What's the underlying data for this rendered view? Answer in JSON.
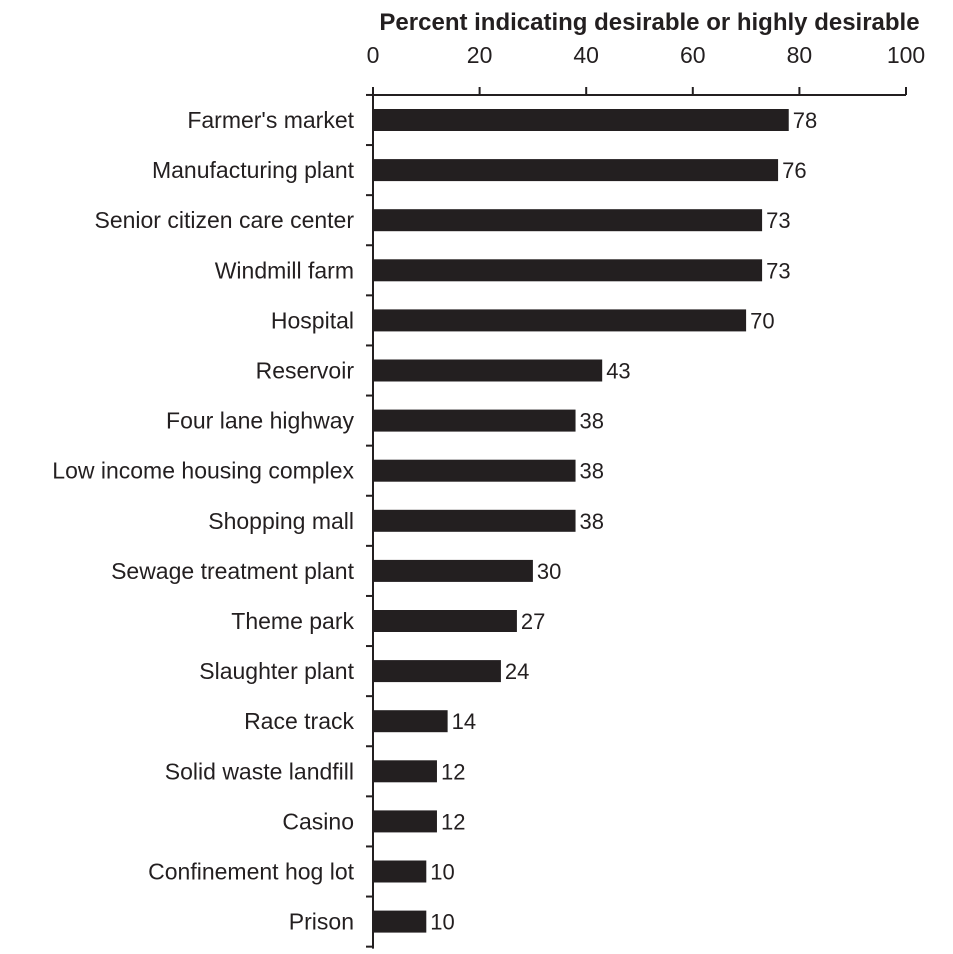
{
  "chart_data": {
    "type": "bar",
    "orientation": "horizontal",
    "title": "",
    "xlabel": "Percent indicating desirable or highly desirable",
    "ylabel": "",
    "xlim": [
      0,
      100
    ],
    "x_ticks": [
      "0",
      "20",
      "40",
      "60",
      "80",
      "100"
    ],
    "x_axis_position": "top",
    "grid": false,
    "legend": "none",
    "bar_color": "#231f20",
    "categories": [
      "Farmer's market",
      "Manufacturing plant",
      "Senior citizen care center",
      "Windmill farm",
      "Hospital",
      "Reservoir",
      "Four lane highway",
      "Low income housing complex",
      "Shopping mall",
      "Sewage treatment plant",
      "Theme park",
      "Slaughter plant",
      "Race track",
      "Solid waste landfill",
      "Casino",
      "Confinement hog lot",
      "Prison"
    ],
    "values": [
      78,
      76,
      73,
      73,
      70,
      43,
      38,
      38,
      38,
      30,
      27,
      24,
      14,
      12,
      12,
      10,
      10
    ],
    "value_labels": [
      "78",
      "76",
      "73",
      "73",
      "70",
      "43",
      "38",
      "38",
      "38",
      "30",
      "27",
      "24",
      "14",
      "12",
      "12",
      "10",
      "10"
    ]
  }
}
